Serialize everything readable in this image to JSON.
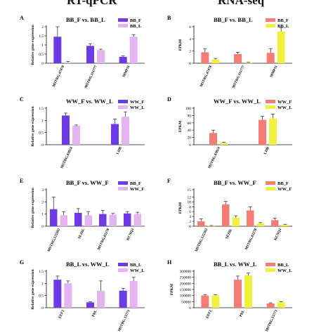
{
  "headers": {
    "left": "RT-qPCR",
    "right": "RNA-seq"
  },
  "colors": {
    "rt_a": "#6c3ae6",
    "rt_b": "#e4b4f0",
    "seq_a": "#f47c74",
    "seq_b": "#f0f040"
  },
  "chart_data": [
    {
      "id": "A",
      "type": "bar",
      "title": "BB_F vs. BB_L",
      "ylabel": "Relative gene expression",
      "categories": [
        "MSTRG.47478",
        "MSTRG.111777",
        "MMP11"
      ],
      "ylim": [
        0,
        2.0
      ],
      "yticks": [
        0,
        0.5,
        1.0,
        1.5,
        2.0
      ],
      "legend_position": "top-right",
      "series": [
        {
          "name": "BB_F",
          "values": [
            1.45,
            0.95,
            0.35
          ],
          "errors": [
            0.85,
            0.12,
            0.05
          ]
        },
        {
          "name": "BB_L",
          "values": [
            0.05,
            0.72,
            1.45
          ],
          "errors": [
            0.05,
            0.05,
            0.12
          ]
        }
      ]
    },
    {
      "id": "B",
      "type": "bar",
      "title": "BB_F vs. BB_L",
      "ylabel": "FPKM",
      "categories": [
        "MSTRG.47478",
        "MSTRG.111777",
        "MMP11"
      ],
      "ylim": [
        0,
        6
      ],
      "yticks": [
        0,
        2,
        4,
        6
      ],
      "legend_position": "top-right",
      "series": [
        {
          "name": "BB_F",
          "values": [
            1.8,
            1.5,
            1.7
          ],
          "errors": [
            0.6,
            0.3,
            0.7
          ]
        },
        {
          "name": "BB_L",
          "values": [
            0.6,
            0.1,
            5.2
          ],
          "errors": [
            0.2,
            0.05,
            0.6
          ]
        }
      ]
    },
    {
      "id": "C",
      "type": "bar",
      "title": "WW_F vs. WW_L",
      "ylabel": "Relative gene expression",
      "categories": [
        "MSTRG.83824",
        "LHB"
      ],
      "ylim": [
        0,
        1.5
      ],
      "yticks": [
        0.0,
        0.5,
        1.0,
        1.5
      ],
      "legend_position": "top-right",
      "series": [
        {
          "name": "WW_F",
          "values": [
            1.2,
            0.85
          ],
          "errors": [
            0.1,
            0.2
          ]
        },
        {
          "name": "WW_L",
          "values": [
            0.78,
            1.15
          ],
          "errors": [
            0.03,
            0.2
          ]
        }
      ]
    },
    {
      "id": "D",
      "type": "bar",
      "title": "WW_F vs. WW_L",
      "ylabel": "FPKM",
      "categories": [
        "MSTRG.83824",
        "LHB"
      ],
      "ylim": [
        0,
        100
      ],
      "yticks": [
        0,
        20,
        40,
        60,
        80,
        100
      ],
      "legend_position": "top-right",
      "series": [
        {
          "name": "WW_F",
          "values": [
            32,
            68
          ],
          "errors": [
            8,
            10
          ]
        },
        {
          "name": "WW_L",
          "values": [
            5,
            72
          ],
          "errors": [
            2,
            12
          ]
        }
      ]
    },
    {
      "id": "E",
      "type": "bar",
      "title": "BB_F vs. WW_F",
      "ylabel": "Relative gene expression",
      "categories": [
        "MSTRG.125592",
        "SEZ6L",
        "MSTRG.83278",
        "KCNQ3"
      ],
      "ylim": [
        0,
        3
      ],
      "yticks": [
        0,
        1,
        2,
        3
      ],
      "legend_position": "top-right",
      "series": [
        {
          "name": "BB_F",
          "values": [
            1.4,
            1.1,
            1.0,
            1.05
          ],
          "errors": [
            1.0,
            0.35,
            0.3,
            0.15
          ]
        },
        {
          "name": "WW_F",
          "values": [
            0.9,
            0.9,
            0.95,
            1.0
          ],
          "errors": [
            0.3,
            0.3,
            0.1,
            0.15
          ]
        }
      ]
    },
    {
      "id": "F",
      "type": "bar",
      "title": "BB_F vs. WW_F",
      "ylabel": "FPKM",
      "categories": [
        "MSTRG.125592",
        "SEZ6L",
        "MSTRG.83278",
        "KCNQ3"
      ],
      "ylim": [
        0,
        15
      ],
      "yticks": [
        0,
        2,
        4,
        6,
        8,
        10,
        12,
        15
      ],
      "legend_position": "top-right",
      "series": [
        {
          "name": "BB_F",
          "values": [
            2.0,
            9.0,
            6.5,
            2.5
          ],
          "errors": [
            1.0,
            1.2,
            1.5,
            0.8
          ]
        },
        {
          "name": "WW_F",
          "values": [
            0.2,
            3.5,
            1.2,
            0.6
          ],
          "errors": [
            0.1,
            0.8,
            0.3,
            0.2
          ]
        }
      ]
    },
    {
      "id": "G",
      "type": "bar",
      "title": "BB_L vs. WW_L",
      "ylabel": "Relative gene expression",
      "categories": [
        "EEF2",
        "PRL",
        "MSTRG.13773"
      ],
      "ylim": [
        0,
        1.5
      ],
      "yticks": [
        0.0,
        0.5,
        1.0,
        1.5
      ],
      "legend_position": "top-right",
      "series": [
        {
          "name": "BB_L",
          "values": [
            1.15,
            0.22,
            0.7
          ],
          "errors": [
            0.15,
            0.02,
            0.1
          ]
        },
        {
          "name": "WW_L",
          "values": [
            1.0,
            0.7,
            1.1
          ],
          "errors": [
            0.1,
            0.4,
            0.15
          ]
        }
      ]
    },
    {
      "id": "H",
      "type": "bar",
      "title": "BB_L vs. WW_L",
      "ylabel": "FPKM",
      "categories": [
        "EEF2",
        "PRL",
        "MSTRG.13773"
      ],
      "ylim": [
        0,
        300000
      ],
      "yticks": [
        0,
        50000,
        100000,
        150000,
        200000,
        250000,
        300000
      ],
      "legend_position": "top-right",
      "series": [
        {
          "name": "BB_L",
          "values": [
            100000,
            230000,
            35000
          ],
          "errors": [
            6000,
            30000,
            5000
          ]
        },
        {
          "name": "WW_L",
          "values": [
            100000,
            265000,
            45000
          ],
          "errors": [
            6000,
            20000,
            5000
          ]
        }
      ]
    }
  ]
}
